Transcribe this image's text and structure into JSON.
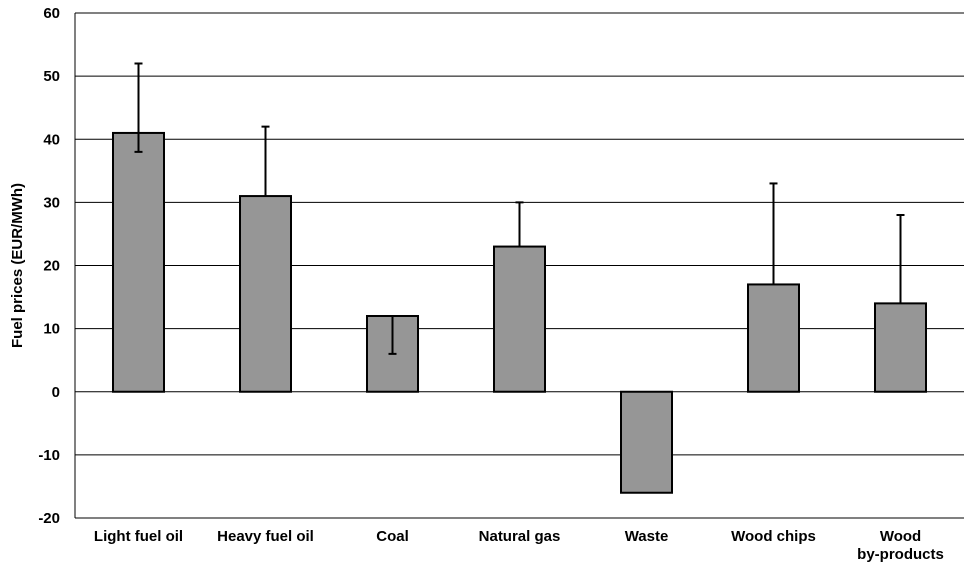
{
  "chart_data": {
    "type": "bar",
    "ylabel": "Fuel prices (EUR/MWh)",
    "xlabel": "",
    "ylim": [
      -20,
      60
    ],
    "yticks": [
      -20,
      -10,
      0,
      10,
      20,
      30,
      40,
      50,
      60
    ],
    "grid": true,
    "categories": [
      [
        "Light fuel oil"
      ],
      [
        "Heavy fuel oil"
      ],
      [
        "Coal"
      ],
      [
        "Natural gas"
      ],
      [
        "Waste"
      ],
      [
        "Wood chips"
      ],
      [
        "Wood",
        "by-products"
      ]
    ],
    "values": [
      41,
      31,
      12,
      23,
      -16,
      17,
      14
    ],
    "error_low": [
      38,
      null,
      6,
      null,
      null,
      null,
      null
    ],
    "error_high": [
      52,
      42,
      12,
      30,
      null,
      33,
      28
    ],
    "colors": {
      "bar_fill": "#969696",
      "bar_stroke": "#000000",
      "grid": "#000000"
    }
  }
}
